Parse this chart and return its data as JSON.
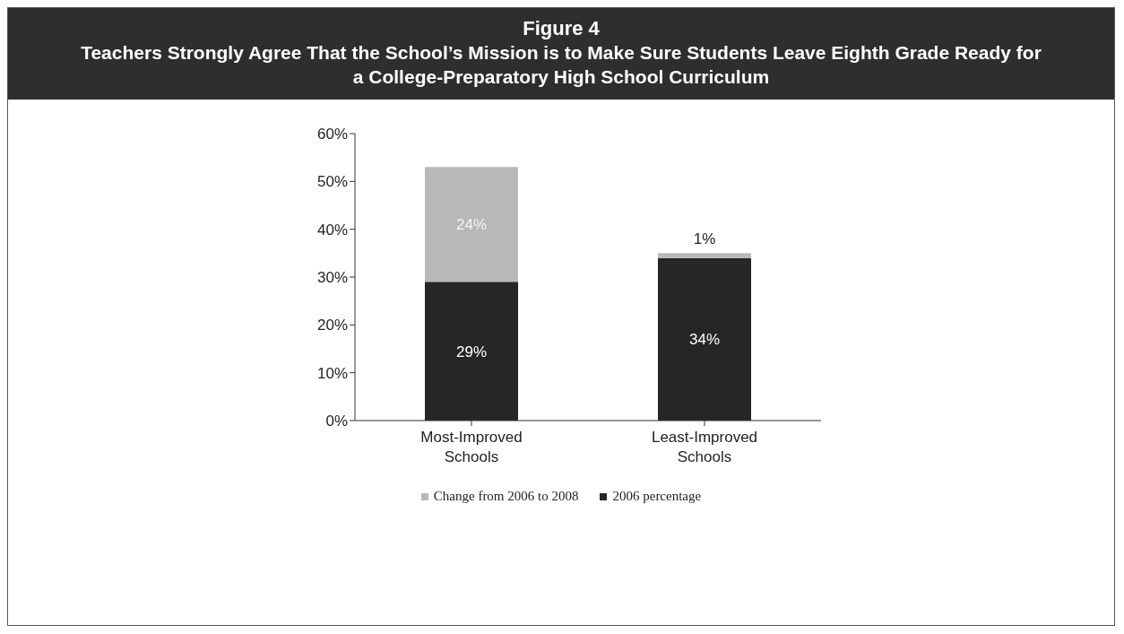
{
  "chart_data": {
    "type": "bar",
    "title": "Figure 4",
    "subtitle": "Teachers Strongly Agree That the School’s Mission is to Make Sure Students Leave Eighth Grade Ready for a College-Preparatory High School Curriculum",
    "categories": [
      "Most-Improved Schools",
      "Least-Improved Schools"
    ],
    "series": [
      {
        "name": "2006 percentage",
        "color": "#262626",
        "values": [
          29,
          34
        ],
        "value_labels": [
          "29%",
          "34%"
        ]
      },
      {
        "name": "Change from 2006 to 2008",
        "color": "#b8b8b8",
        "values": [
          24,
          1
        ],
        "value_labels": [
          "24%",
          "1%"
        ]
      }
    ],
    "stacked": true,
    "legend": "bottom",
    "grid": false,
    "ylim": [
      0,
      60
    ],
    "yticks": [
      {
        "value": 0,
        "label": "0%"
      },
      {
        "value": 10,
        "label": "10%"
      },
      {
        "value": 20,
        "label": "20%"
      },
      {
        "value": 30,
        "label": "30%"
      },
      {
        "value": 40,
        "label": "40%"
      },
      {
        "value": 50,
        "label": "50%"
      },
      {
        "value": 60,
        "label": "60%"
      }
    ]
  }
}
